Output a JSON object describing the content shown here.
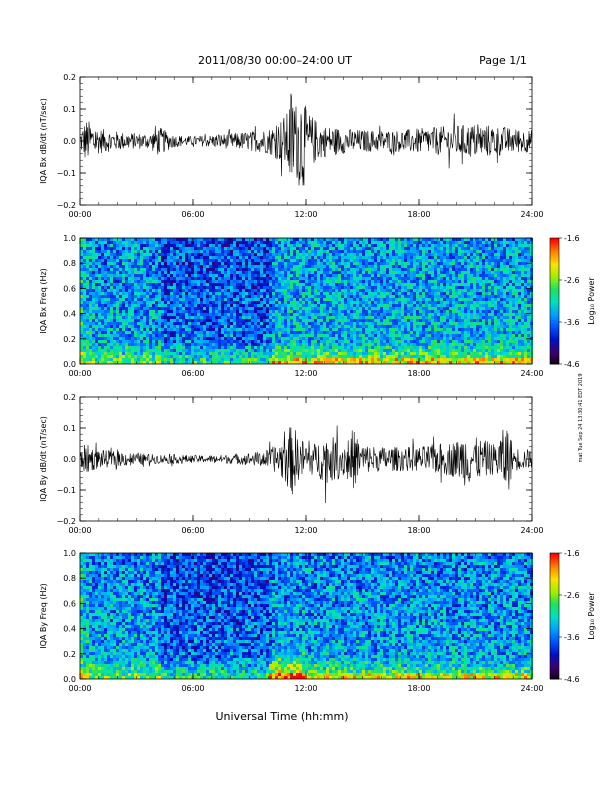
{
  "header": {
    "title": "2011/08/30  00:00–24:00 UT",
    "page": "Page 1/1"
  },
  "footer": {
    "xlabel": "Universal Time (hh:mm)",
    "side_note": "mat Tue Sep 24 13:30:41 EDT 2019"
  },
  "colors": {
    "trace": "#000000",
    "colormap": [
      "#140014",
      "#3a0070",
      "#0010c0",
      "#0050ff",
      "#00a0ff",
      "#00e0c0",
      "#20e060",
      "#a0f000",
      "#ffe000",
      "#ff8000",
      "#ff0000"
    ]
  },
  "chart_data": [
    {
      "type": "line",
      "name": "time-series-bx",
      "ylabel": "IQA Bx dB/dt (nT/sec)",
      "xlabel": "",
      "x_ticks": [
        "00:00",
        "06:00",
        "12:00",
        "18:00",
        "24:00"
      ],
      "x_range_hours": [
        0,
        24
      ],
      "ylim": [
        -0.2,
        0.2
      ],
      "y_ticks": [
        "0.2",
        "0.1",
        "0.0",
        "−0.1",
        "−0.2"
      ],
      "envelope": {
        "hours": [
          0,
          0.3,
          0.6,
          1,
          2,
          3,
          3.8,
          4,
          5,
          6,
          7,
          8,
          9,
          10,
          10.5,
          11,
          11.2,
          11.5,
          11.8,
          12,
          12.5,
          13,
          14,
          15,
          16,
          17,
          18,
          19,
          20,
          21,
          22,
          23,
          24
        ],
        "amplitude": [
          0.03,
          0.07,
          0.06,
          0.04,
          0.03,
          0.025,
          0.025,
          0.05,
          0.02,
          0.015,
          0.02,
          0.025,
          0.03,
          0.04,
          0.06,
          0.09,
          0.17,
          0.12,
          0.18,
          0.1,
          0.07,
          0.05,
          0.04,
          0.035,
          0.035,
          0.035,
          0.04,
          0.045,
          0.05,
          0.055,
          0.05,
          0.04,
          0.035
        ]
      }
    },
    {
      "type": "heatmap",
      "name": "spectrogram-bx",
      "ylabel": "IQA Bx Freq (Hz)",
      "x_ticks": [
        "00:00",
        "06:00",
        "12:00",
        "18:00",
        "24:00"
      ],
      "ylim": [
        0,
        1.0
      ],
      "y_ticks": [
        "1.0",
        "0.8",
        "0.6",
        "0.4",
        "0.2",
        "0.0"
      ],
      "colorbar": {
        "label": "Log₁₀ Power",
        "ticks": [
          "-1.6",
          "-2.6",
          "-3.6",
          "-4.6"
        ],
        "range": [
          -4.6,
          -1.6
        ]
      }
    },
    {
      "type": "line",
      "name": "time-series-by",
      "ylabel": "IQA By dB/dt (nT/sec)",
      "x_ticks": [
        "00:00",
        "06:00",
        "12:00",
        "18:00",
        "24:00"
      ],
      "x_range_hours": [
        0,
        24
      ],
      "ylim": [
        -0.2,
        0.2
      ],
      "y_ticks": [
        "0.2",
        "0.1",
        "0.0",
        "−0.1",
        "−0.2"
      ],
      "envelope": {
        "hours": [
          0,
          0.3,
          0.6,
          1,
          2,
          3,
          4,
          5,
          6,
          7,
          8,
          9,
          10,
          10.5,
          11,
          11.3,
          11.6,
          12,
          12.5,
          13,
          14,
          14.5,
          15,
          16,
          17,
          18,
          19,
          20,
          20.5,
          21,
          22,
          22.7,
          23,
          24
        ],
        "amplitude": [
          0.03,
          0.05,
          0.04,
          0.03,
          0.025,
          0.02,
          0.015,
          0.015,
          0.012,
          0.012,
          0.015,
          0.02,
          0.03,
          0.05,
          0.09,
          0.12,
          0.07,
          0.06,
          0.05,
          0.08,
          0.06,
          0.1,
          0.05,
          0.04,
          0.04,
          0.04,
          0.05,
          0.06,
          0.09,
          0.07,
          0.05,
          0.12,
          0.04,
          0.03
        ]
      }
    },
    {
      "type": "heatmap",
      "name": "spectrogram-by",
      "ylabel": "IQA By Freq (Hz)",
      "x_ticks": [
        "00:00",
        "06:00",
        "12:00",
        "18:00",
        "24:00"
      ],
      "ylim": [
        0,
        1.0
      ],
      "y_ticks": [
        "1.0",
        "0.8",
        "0.6",
        "0.4",
        "0.2",
        "0.0"
      ],
      "colorbar": {
        "label": "Log₁₀ Power",
        "ticks": [
          "-1.6",
          "-2.6",
          "-3.6",
          "-4.6"
        ],
        "range": [
          -4.6,
          -1.6
        ]
      }
    }
  ]
}
